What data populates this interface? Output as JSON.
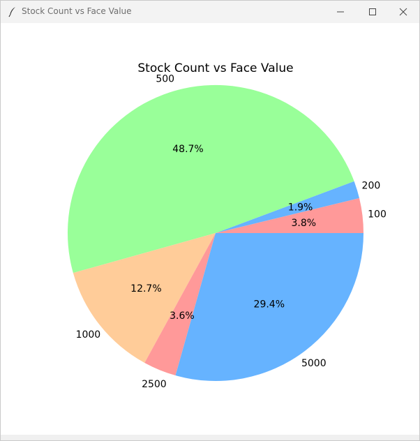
{
  "window": {
    "title": "Stock Count vs Face Value",
    "icon": "feather-icon"
  },
  "controls": {
    "minimize_icon": "minimize-icon",
    "maximize_icon": "maximize-icon",
    "close_icon": "close-icon"
  },
  "chart_data": {
    "type": "pie",
    "title": "Stock Count vs Face Value",
    "start_angle_deg": 0,
    "direction": "counterclockwise",
    "slices": [
      {
        "label": "100",
        "percent": 3.8,
        "pct_label": "3.8%",
        "color": "#ff9999"
      },
      {
        "label": "200",
        "percent": 1.9,
        "pct_label": "1.9%",
        "color": "#66b3ff"
      },
      {
        "label": "500",
        "percent": 48.7,
        "pct_label": "48.7%",
        "color": "#99ff99"
      },
      {
        "label": "1000",
        "percent": 12.7,
        "pct_label": "12.7%",
        "color": "#ffcc99"
      },
      {
        "label": "2500",
        "percent": 3.6,
        "pct_label": "3.6%",
        "color": "#ff9999"
      },
      {
        "label": "5000",
        "percent": 29.4,
        "pct_label": "29.4%",
        "color": "#66b3ff"
      }
    ]
  }
}
